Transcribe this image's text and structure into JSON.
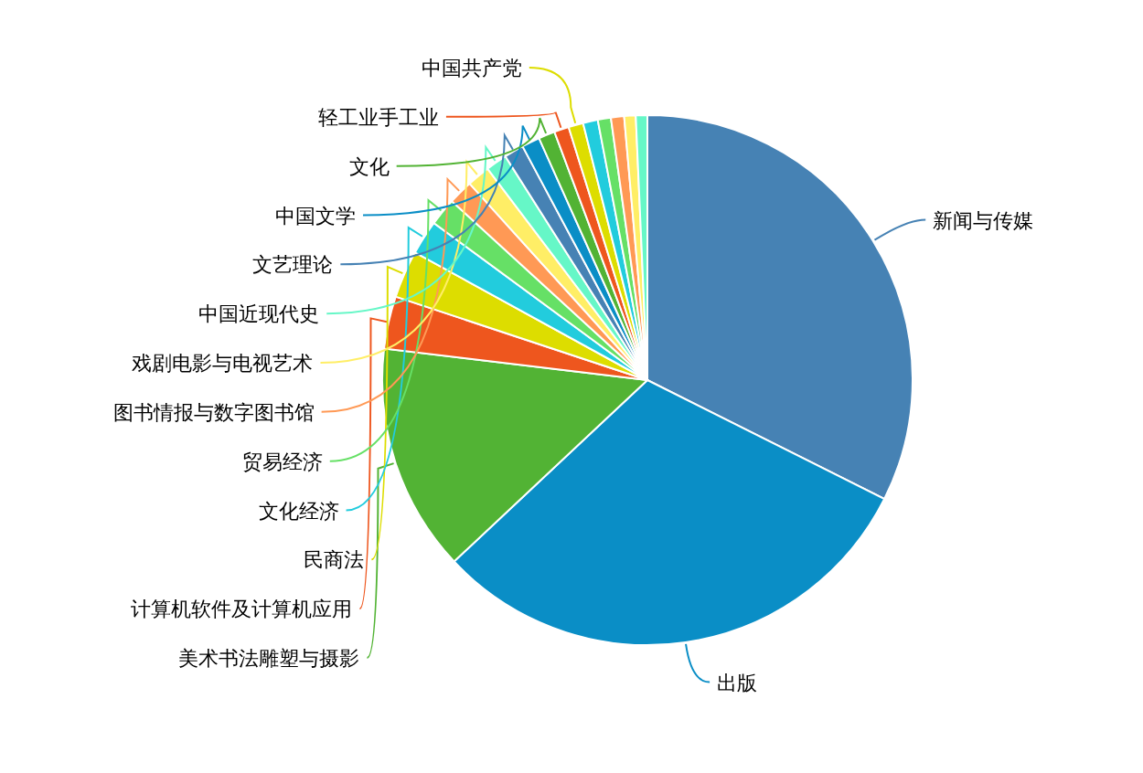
{
  "chart_data": {
    "type": "pie",
    "categories": [
      "新闻与传媒",
      "出版",
      "美术书法雕塑与摄影",
      "计算机软件及计算机应用",
      "民商法",
      "文化经济",
      "贸易经济",
      "图书情报与数字图书馆",
      "戏剧电影与电视艺术",
      "中国近现代史",
      "文艺理论",
      "中国文学",
      "文化",
      "轻工业手工业",
      "中国共产党",
      null,
      null,
      null,
      null,
      null
    ],
    "values": [
      32.4,
      30.6,
      13.9,
      3.2,
      2.9,
      2.1,
      1.7,
      1.5,
      1.4,
      1.3,
      1.2,
      1.1,
      1.0,
      0.9,
      0.9,
      0.9,
      0.8,
      0.8,
      0.7,
      0.7
    ],
    "colors": [
      "#4682b4",
      "#0a8ec6",
      "#52b334",
      "#ee561e",
      "#dddd00",
      "#22ccdd",
      "#66e066",
      "#ff9955",
      "#ffee66",
      "#66f7c7",
      "#4682b4",
      "#0a8ec6",
      "#52b334",
      "#ee561e",
      "#dddd00",
      "#22ccdd",
      "#66e066",
      "#ff9955",
      "#ffee66",
      "#66f7c7"
    ]
  }
}
